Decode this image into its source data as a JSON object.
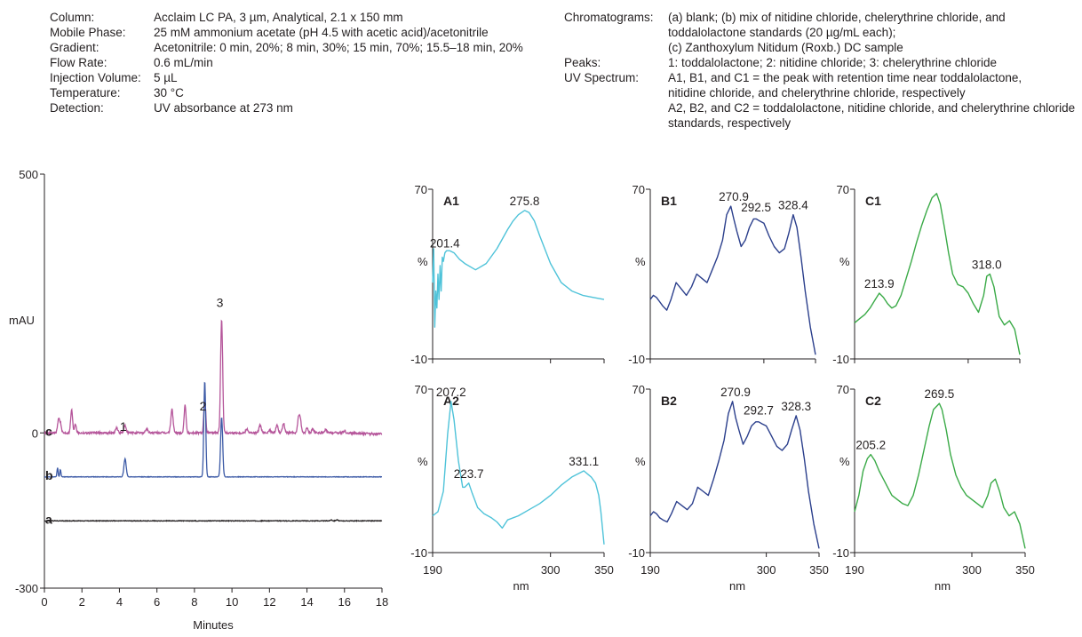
{
  "conditions_left": [
    {
      "key": "Column:",
      "value": "Acclaim LC PA, 3 µm, Analytical, 2.1 x 150 mm"
    },
    {
      "key": "Mobile Phase:",
      "value": "25 mM ammonium acetate (pH 4.5 with acetic acid)/acetonitrile"
    },
    {
      "key": "Gradient:",
      "value": "Acetonitrile: 0 min, 20%; 8 min, 30%; 15 min, 70%; 15.5–18 min, 20%"
    },
    {
      "key": "Flow Rate:",
      "value": "0.6 mL/min"
    },
    {
      "key": "Injection Volume:",
      "value": "5 µL"
    },
    {
      "key": "Temperature:",
      "value": "30 °C"
    },
    {
      "key": "Detection:",
      "value": "UV absorbance at 273 nm"
    }
  ],
  "conditions_right": [
    {
      "key": "Chromatograms:",
      "value": "(a) blank;  (b) mix of nitidine chloride, chelerythrine chloride, and"
    },
    {
      "key": "",
      "value": "toddalolactone standards (20 µg/mL each);"
    },
    {
      "key": "",
      "value": "(c) Zanthoxylum Nitidum (Roxb.) DC sample"
    },
    {
      "key": "Peaks:",
      "value": "1: toddalolactone;  2: nitidine chloride; 3: chelerythrine chloride"
    },
    {
      "key": "UV Spectrum:",
      "value": "A1, B1, and C1 = the peak with retention time near toddalolactone,"
    },
    {
      "key": "",
      "value": "nitidine chloride, and chelerythrine chloride, respectively"
    },
    {
      "key": "",
      "value": "A2, B2, and C2 = toddalolactone, nitidine chloride, and chelerythrine chloride"
    },
    {
      "key": "",
      "value": "standards, respectively"
    }
  ],
  "chart_data": [
    {
      "type": "line",
      "id": "chromatogram",
      "xlabel": "Minutes",
      "ylabel": "mAU",
      "xlim": [
        0,
        18
      ],
      "ylim": [
        -300,
        500
      ],
      "xticks": [
        "0",
        "2",
        "4",
        "6",
        "8",
        "10",
        "12",
        "14",
        "16",
        "18"
      ],
      "yticks": [
        {
          "value": 500,
          "label": "500"
        },
        {
          "value": 0,
          "label": "0"
        },
        {
          "value": -300,
          "label": "-300"
        }
      ],
      "peak_labels": [
        {
          "label": "1",
          "x": 4.3,
          "y": -10
        },
        {
          "label": "2",
          "x": 8.55,
          "y": 30
        },
        {
          "label": "3",
          "x": 9.45,
          "y": 230
        }
      ],
      "series": [
        {
          "name": "c",
          "color": "#b5559a",
          "baseline": 0,
          "offset": 0,
          "noise": 2,
          "peaks": [
            [
              0.75,
              25,
              0.05
            ],
            [
              0.85,
              18,
              0.05
            ],
            [
              1.45,
              45,
              0.05
            ],
            [
              1.65,
              18,
              0.05
            ],
            [
              3.85,
              10,
              0.06
            ],
            [
              4.3,
              14,
              0.06
            ],
            [
              5.45,
              8,
              0.06
            ],
            [
              6.8,
              45,
              0.06
            ],
            [
              7.5,
              55,
              0.05
            ],
            [
              8.55,
              65,
              0.05
            ],
            [
              9.45,
              220,
              0.055
            ],
            [
              10.8,
              8,
              0.06
            ],
            [
              11.5,
              15,
              0.06
            ],
            [
              12.0,
              6,
              0.06
            ],
            [
              12.4,
              15,
              0.06
            ],
            [
              12.75,
              18,
              0.06
            ],
            [
              13.55,
              30,
              0.05
            ],
            [
              13.65,
              25,
              0.05
            ],
            [
              14.0,
              10,
              0.05
            ],
            [
              14.3,
              8,
              0.05
            ],
            [
              15.0,
              6,
              0.05
            ],
            [
              16.0,
              4,
              0.06
            ]
          ]
        },
        {
          "name": "b",
          "color": "#3c5aa6",
          "baseline": -85,
          "offset": 0,
          "noise": 0.5,
          "peaks": [
            [
              0.7,
              18,
              0.03
            ],
            [
              0.85,
              14,
              0.03
            ],
            [
              4.3,
              35,
              0.06
            ],
            [
              8.55,
              185,
              0.05
            ],
            [
              9.45,
              115,
              0.055
            ]
          ]
        },
        {
          "name": "a",
          "color": "#231f20",
          "baseline": -170,
          "offset": 0,
          "noise": 0.6,
          "peaks": [
            [
              15.3,
              2,
              0.05
            ],
            [
              15.6,
              2,
              0.05
            ]
          ]
        }
      ]
    },
    {
      "type": "line",
      "id": "A1",
      "title": "A1",
      "color": "#4fc3d9",
      "xlabel": "",
      "ylabel": "%",
      "xlim": [
        190,
        350
      ],
      "ylim": [
        -10,
        70
      ],
      "x": [
        190,
        191,
        192,
        193,
        194,
        195,
        196,
        197,
        198,
        199,
        200,
        201.4,
        203,
        206,
        210,
        215,
        220,
        230,
        240,
        250,
        260,
        265,
        270,
        275.8,
        280,
        285,
        290,
        300,
        310,
        320,
        330,
        340,
        350
      ],
      "y": [
        26,
        42,
        5,
        22,
        14,
        30,
        18,
        34,
        22,
        38,
        36,
        40,
        41,
        41,
        40,
        37,
        35,
        32,
        35,
        42,
        51,
        55,
        58,
        60,
        59,
        55,
        48,
        35,
        26,
        22,
        20,
        19,
        18
      ],
      "labels": [
        {
          "text": "201.4",
          "x": 201.4,
          "y": 40
        },
        {
          "text": "275.8",
          "x": 275.8,
          "y": 60
        }
      ]
    },
    {
      "type": "line",
      "id": "B1",
      "title": "B1",
      "color": "#2b3f8c",
      "xlabel": "",
      "ylabel": "%",
      "xlim": [
        190,
        350
      ],
      "ylim": [
        -10,
        70
      ],
      "x": [
        190,
        193,
        196,
        199,
        202,
        206,
        210,
        215,
        220,
        225,
        230,
        235,
        240,
        245,
        250,
        255,
        260,
        264,
        268,
        270.9,
        274,
        278,
        282,
        286,
        290,
        292.5,
        296,
        300,
        305,
        310,
        315,
        320,
        324,
        328.4,
        332,
        336,
        340,
        345,
        350
      ],
      "y": [
        18,
        20,
        19,
        17,
        15,
        13,
        18,
        26,
        23,
        20,
        24,
        30,
        28,
        26,
        32,
        38,
        46,
        58,
        62,
        56,
        50,
        43,
        46,
        52,
        56,
        56,
        55,
        54,
        48,
        43,
        40,
        42,
        49,
        58,
        52,
        38,
        22,
        5,
        -8
      ],
      "labels": [
        {
          "text": "270.9",
          "x": 270.9,
          "y": 62
        },
        {
          "text": "292.5",
          "x": 292.5,
          "y": 57
        },
        {
          "text": "328.4",
          "x": 328.4,
          "y": 58
        }
      ]
    },
    {
      "type": "line",
      "id": "C1",
      "title": "C1",
      "color": "#3aaa47",
      "xlabel": "",
      "ylabel": "%",
      "xlim": [
        190,
        350
      ],
      "ylim": [
        -10,
        70
      ],
      "x": [
        190,
        195,
        200,
        205,
        210,
        213.9,
        218,
        222,
        226,
        230,
        235,
        240,
        245,
        250,
        255,
        260,
        265,
        269.5,
        273,
        277,
        281,
        285,
        290,
        295,
        300,
        305,
        310,
        315,
        318,
        321,
        325,
        330,
        335,
        340,
        345,
        350
      ],
      "y": [
        7,
        9,
        11,
        14,
        18,
        21,
        19,
        16,
        14,
        15,
        20,
        28,
        36,
        45,
        53,
        60,
        66,
        68,
        63,
        52,
        40,
        30,
        25,
        24,
        21,
        16,
        12,
        20,
        29,
        30,
        24,
        10,
        6,
        8,
        4,
        -8
      ],
      "labels": [
        {
          "text": "213.9",
          "x": 213.9,
          "y": 21
        },
        {
          "text": "318.0",
          "x": 318.0,
          "y": 30
        }
      ]
    },
    {
      "type": "line",
      "id": "A2",
      "title": "A2",
      "color": "#4fc3d9",
      "xlabel": "nm",
      "ylabel": "%",
      "xlim": [
        190,
        350
      ],
      "ylim": [
        -10,
        70
      ],
      "x": [
        190,
        195,
        200,
        204,
        207.2,
        210,
        214,
        218,
        220,
        223.7,
        227,
        232,
        238,
        245,
        250,
        255,
        260,
        270,
        280,
        290,
        300,
        310,
        320,
        331.1,
        338,
        342,
        345,
        347,
        350
      ],
      "y": [
        8,
        10,
        20,
        48,
        64,
        55,
        35,
        22,
        22,
        24,
        19,
        12,
        9,
        7,
        5,
        2,
        6,
        8,
        11,
        14,
        18,
        23,
        27,
        30,
        27,
        24,
        18,
        10,
        -6
      ],
      "labels": [
        {
          "text": "207.2",
          "x": 207.2,
          "y": 64
        },
        {
          "text": "223.7",
          "x": 223.7,
          "y": 24
        },
        {
          "text": "331.1",
          "x": 331.1,
          "y": 30
        }
      ]
    },
    {
      "type": "line",
      "id": "B2",
      "title": "B2",
      "color": "#2b3f8c",
      "xlabel": "nm",
      "ylabel": "%",
      "xlim": [
        190,
        350
      ],
      "ylim": [
        -10,
        70
      ],
      "x": [
        190,
        193,
        196,
        199,
        202,
        206,
        210,
        215,
        220,
        225,
        230,
        235,
        240,
        245,
        250,
        255,
        260,
        264,
        268,
        270.9,
        274,
        278,
        282,
        286,
        290,
        292.7,
        296,
        300,
        305,
        310,
        315,
        320,
        324,
        328.3,
        332,
        336,
        340,
        345,
        350
      ],
      "y": [
        8,
        10,
        9,
        7,
        6,
        5,
        9,
        15,
        13,
        11,
        14,
        22,
        20,
        18,
        26,
        35,
        45,
        58,
        64,
        56,
        50,
        43,
        47,
        52,
        54,
        54,
        53,
        52,
        47,
        42,
        40,
        43,
        50,
        57,
        50,
        36,
        20,
        4,
        -8
      ],
      "labels": [
        {
          "text": "270.9",
          "x": 270.9,
          "y": 64
        },
        {
          "text": "292.7",
          "x": 292.7,
          "y": 55
        },
        {
          "text": "328.3",
          "x": 328.3,
          "y": 57
        }
      ]
    },
    {
      "type": "line",
      "id": "C2",
      "title": "C2",
      "color": "#3aaa47",
      "xlabel": "nm",
      "ylabel": "%",
      "xlim": [
        190,
        350
      ],
      "ylim": [
        -10,
        70
      ],
      "x": [
        190,
        194,
        198,
        202,
        205.2,
        209,
        213,
        217,
        221,
        225,
        230,
        235,
        240,
        245,
        250,
        255,
        260,
        264,
        269.5,
        272,
        276,
        280,
        285,
        290,
        295,
        300,
        305,
        310,
        315,
        318,
        322,
        326,
        330,
        335,
        340,
        345,
        350
      ],
      "y": [
        10,
        18,
        30,
        36,
        38,
        35,
        30,
        26,
        22,
        18,
        16,
        14,
        13,
        18,
        28,
        40,
        52,
        60,
        63,
        60,
        50,
        38,
        28,
        22,
        18,
        16,
        14,
        12,
        18,
        24,
        26,
        20,
        12,
        8,
        10,
        4,
        -8
      ],
      "labels": [
        {
          "text": "205.2",
          "x": 205.2,
          "y": 38
        },
        {
          "text": "269.5",
          "x": 269.5,
          "y": 63
        }
      ]
    }
  ]
}
